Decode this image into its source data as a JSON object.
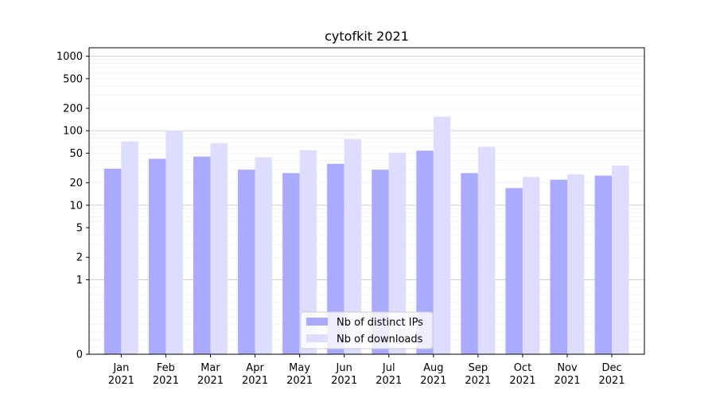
{
  "chart_data": {
    "type": "bar",
    "title": "cytofkit 2021",
    "xlabel": "",
    "ylabel": "",
    "y_scale": "symlog",
    "ylim": [
      0,
      1300
    ],
    "yticks": [
      0,
      1,
      2,
      5,
      10,
      20,
      50,
      100,
      200,
      500,
      1000
    ],
    "grid": true,
    "legend_position": "bottom-center",
    "categories": [
      [
        "Jan",
        "2021"
      ],
      [
        "Feb",
        "2021"
      ],
      [
        "Mar",
        "2021"
      ],
      [
        "Apr",
        "2021"
      ],
      [
        "May",
        "2021"
      ],
      [
        "Jun",
        "2021"
      ],
      [
        "Jul",
        "2021"
      ],
      [
        "Aug",
        "2021"
      ],
      [
        "Sep",
        "2021"
      ],
      [
        "Oct",
        "2021"
      ],
      [
        "Nov",
        "2021"
      ],
      [
        "Dec",
        "2021"
      ]
    ],
    "series": [
      {
        "name": "Nb of distinct IPs",
        "color": "#aaaaff",
        "values": [
          31,
          42,
          45,
          30,
          27,
          36,
          30,
          54,
          27,
          17,
          22,
          25
        ]
      },
      {
        "name": "Nb of downloads",
        "color": "#ddddff",
        "values": [
          72,
          101,
          68,
          44,
          55,
          77,
          51,
          155,
          61,
          24,
          26,
          34
        ]
      }
    ]
  }
}
